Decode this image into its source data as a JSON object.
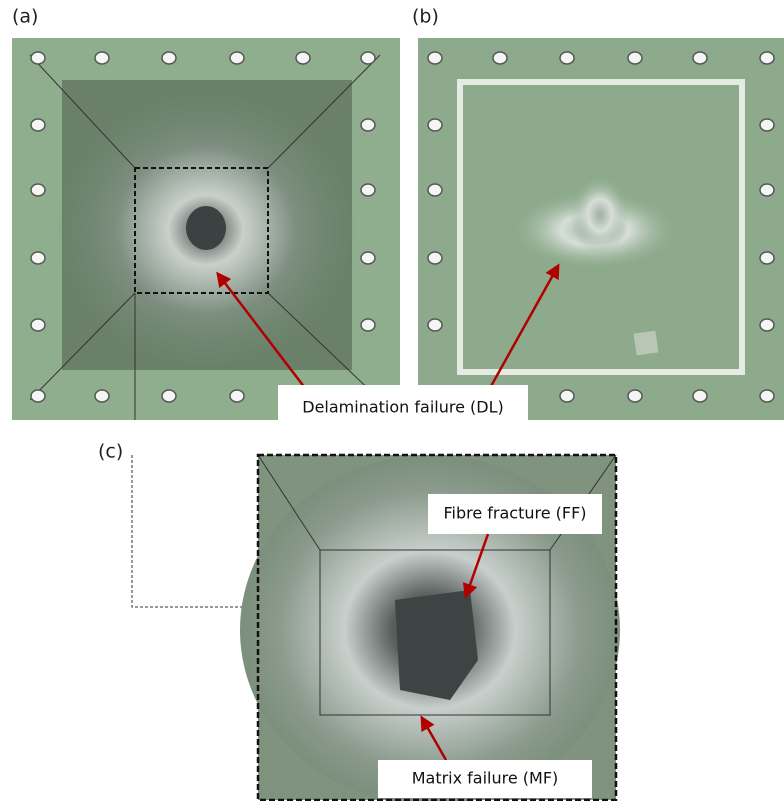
{
  "panels": [
    {
      "label": "(a)"
    },
    {
      "label": "(b)"
    },
    {
      "label": "(c)"
    }
  ],
  "annotations": {
    "delamination": "Delamination failure (DL)",
    "fibre_fracture": "Fibre fracture (FF)",
    "matrix_failure": "Matrix failure (MF)"
  }
}
